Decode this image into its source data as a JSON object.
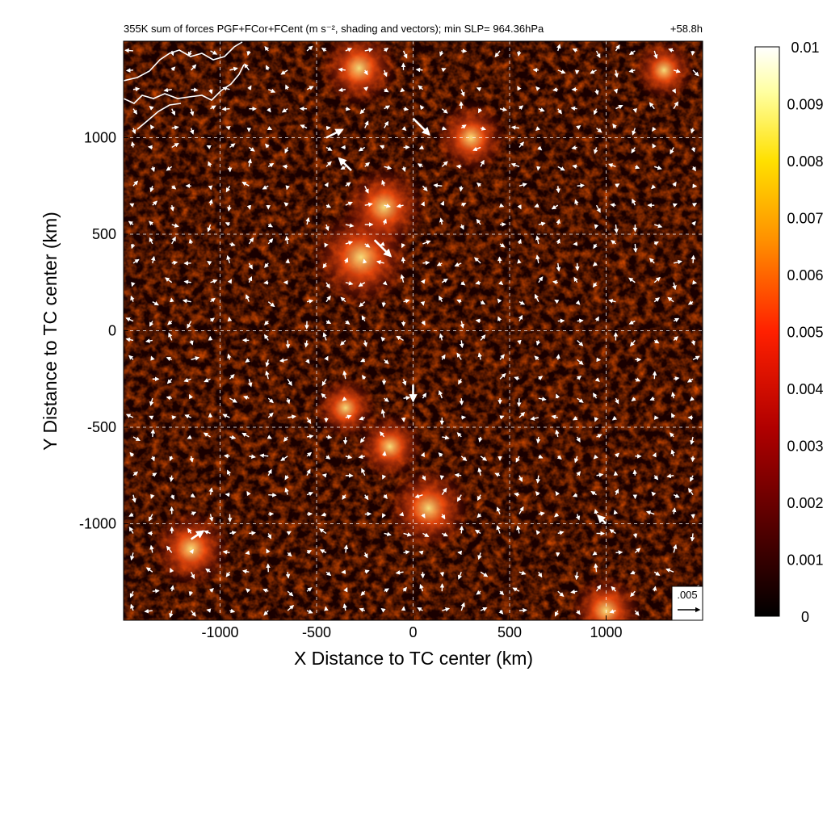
{
  "chart_data": {
    "type": "heatmap",
    "title": "355K sum of forces PGF+FCor+FCent (m s⁻², shading and vectors); min SLP= 964.36hPa",
    "time_label": "+58.8h",
    "xlabel": "X Distance to TC center (km)",
    "ylabel": "Y Distance to TC center (km)",
    "xlim": [
      -1500,
      1500
    ],
    "ylim": [
      -1500,
      1500
    ],
    "x_ticks": [
      "-1000",
      "-500",
      "0",
      "500",
      "1000"
    ],
    "y_ticks": [
      "-1000",
      "-500",
      "0",
      "500",
      "1000"
    ],
    "x_tick_values": [
      -1000,
      -500,
      0,
      500,
      1000
    ],
    "y_tick_values": [
      -1000,
      -500,
      0,
      500,
      1000
    ],
    "grid": true,
    "grid_style": "dashed",
    "colormap": "hot (black-red-yellow-white)",
    "colorbar": {
      "min": 0,
      "max": 0.01,
      "ticks": [
        "0.01",
        "0.009",
        "0.008",
        "0.007",
        "0.006",
        "0.005",
        "0.004",
        "0.003",
        "0.002",
        "0.001",
        "0"
      ],
      "tick_values": [
        0.01,
        0.009,
        0.008,
        0.007,
        0.006,
        0.005,
        0.004,
        0.003,
        0.002,
        0.001,
        0
      ],
      "placement": "right"
    },
    "reference_vector": {
      "label": ".005",
      "value": 0.005
    },
    "hotspots": [
      {
        "x": -270,
        "y": 380,
        "intensity": 0.0065
      },
      {
        "x": -150,
        "y": 640,
        "intensity": 0.005
      },
      {
        "x": -280,
        "y": 1360,
        "intensity": 0.0045
      },
      {
        "x": 300,
        "y": 1000,
        "intensity": 0.004
      },
      {
        "x": 80,
        "y": -920,
        "intensity": 0.005
      },
      {
        "x": -1150,
        "y": -1130,
        "intensity": 0.0045
      },
      {
        "x": -120,
        "y": -600,
        "intensity": 0.0035
      },
      {
        "x": 1000,
        "y": -1450,
        "intensity": 0.004
      },
      {
        "x": -350,
        "y": -400,
        "intensity": 0.003
      },
      {
        "x": 1300,
        "y": 1350,
        "intensity": 0.003
      }
    ],
    "vectors_sample": [
      {
        "x": -450,
        "y": 1000,
        "u": 0.004,
        "v": 0.002
      },
      {
        "x": 0,
        "y": 1100,
        "u": 0.004,
        "v": -0.004
      },
      {
        "x": -320,
        "y": 830,
        "u": -0.003,
        "v": 0.003
      },
      {
        "x": -200,
        "y": 470,
        "u": 0.004,
        "v": -0.004
      },
      {
        "x": 0,
        "y": -280,
        "u": 0.0,
        "v": -0.004
      },
      {
        "x": -1150,
        "y": -1080,
        "u": 0.003,
        "v": 0.002
      },
      {
        "x": 1000,
        "y": -1000,
        "u": -0.002,
        "v": 0.002
      }
    ]
  }
}
